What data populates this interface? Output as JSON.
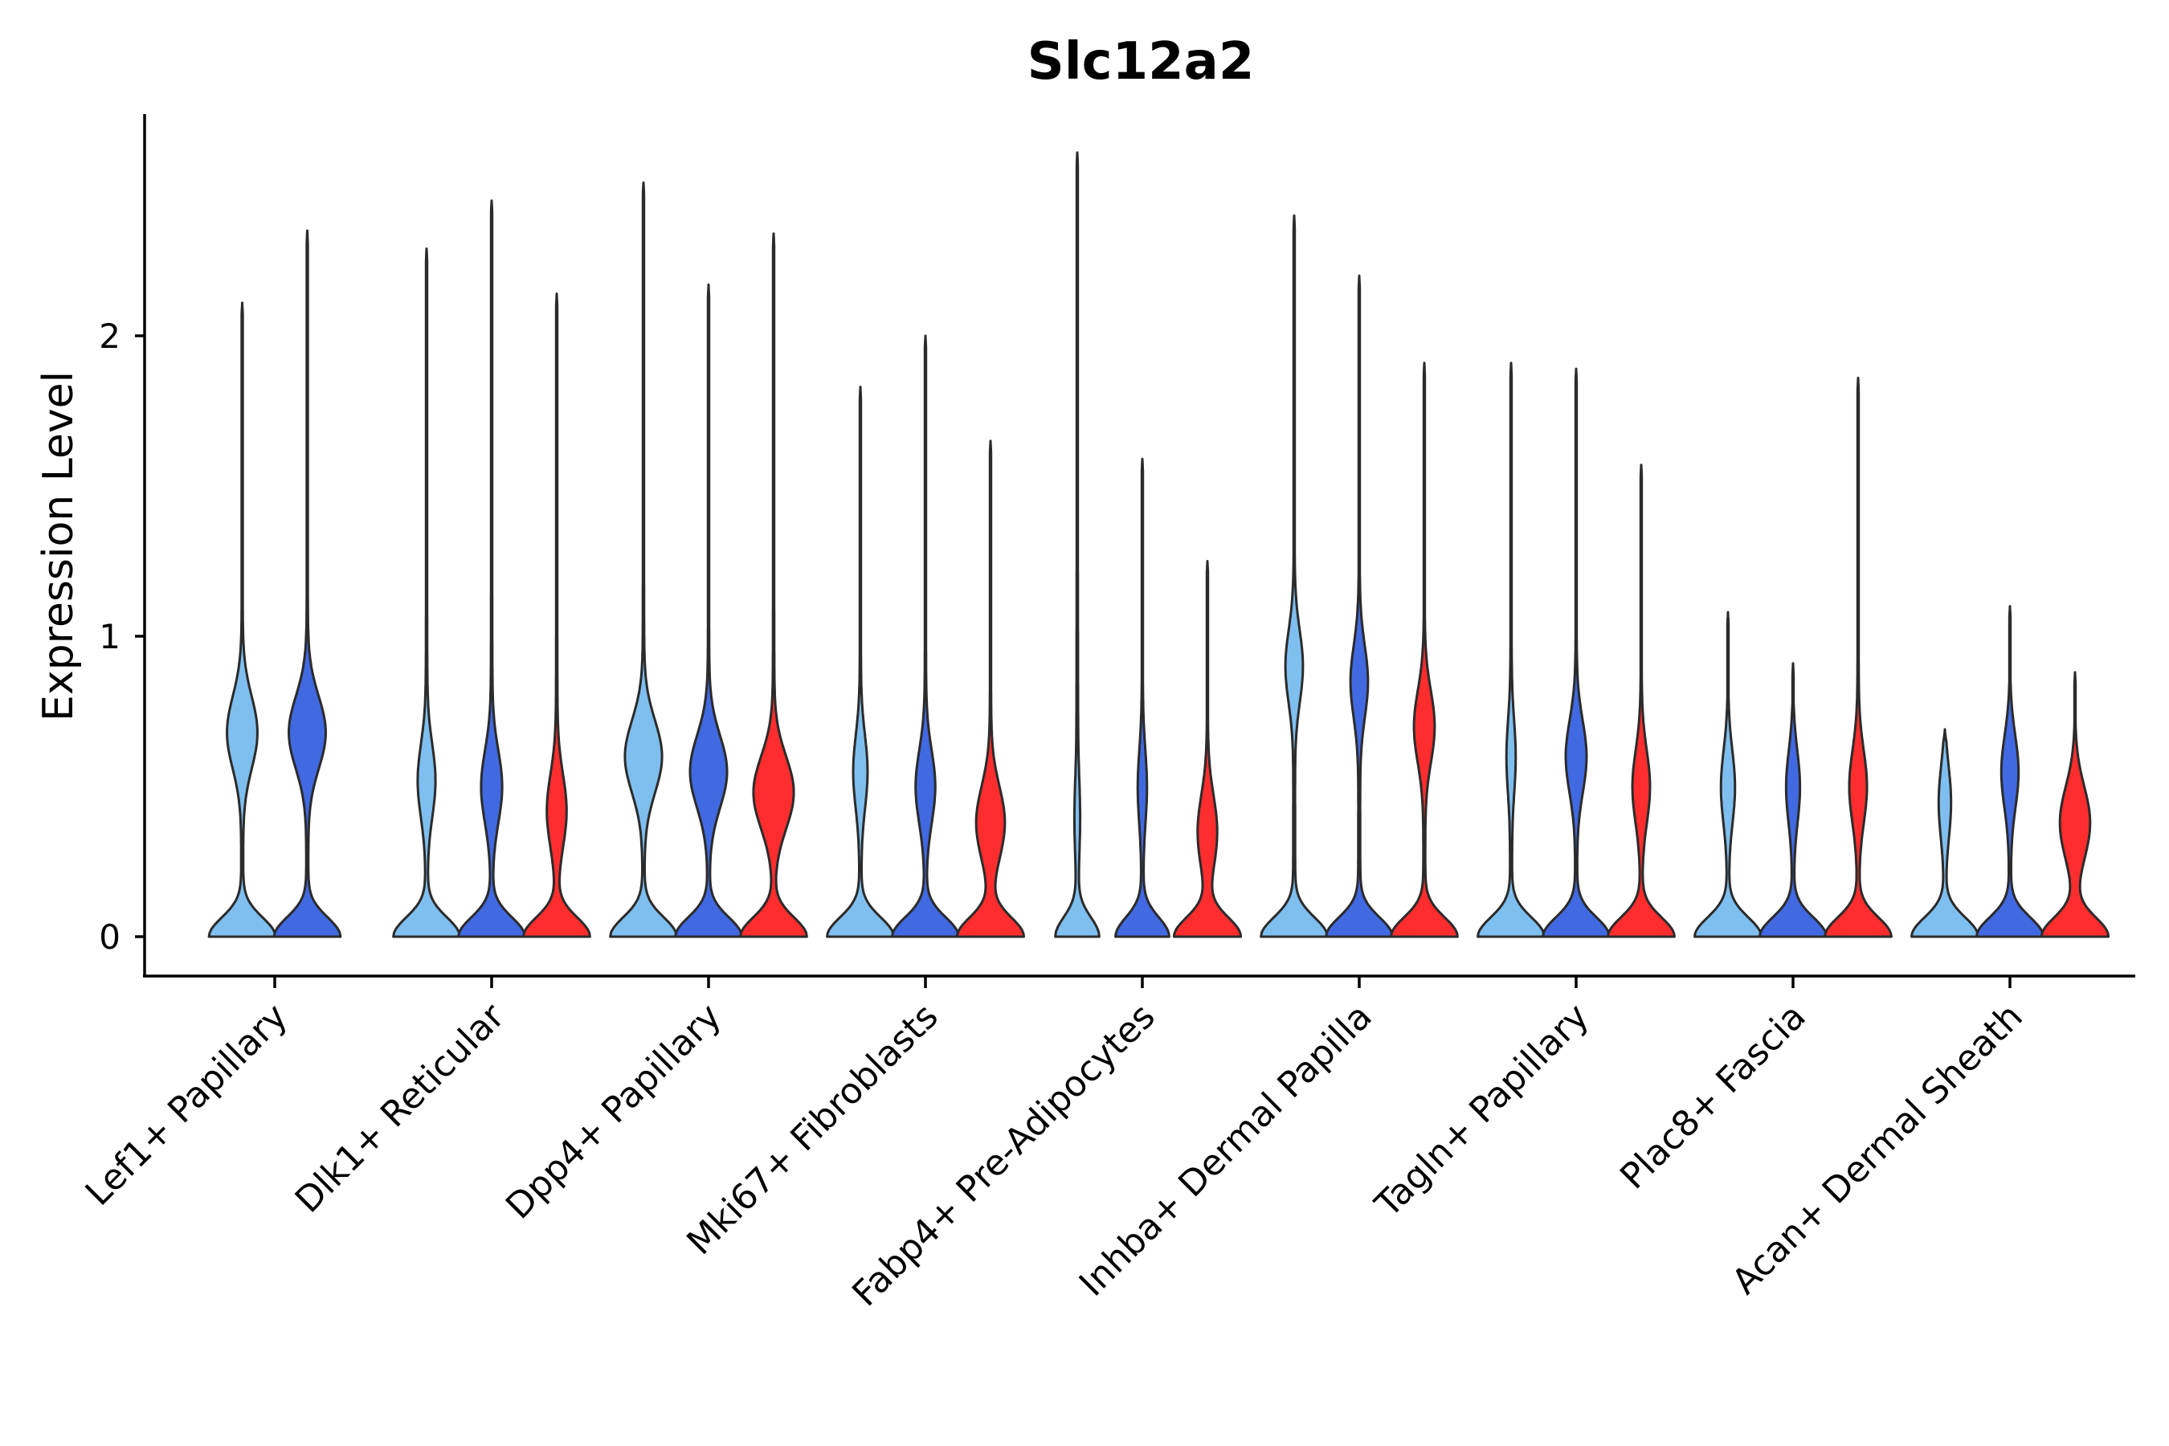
{
  "chart_data": {
    "type": "violin",
    "title": "Slc12a2",
    "xlabel": "",
    "ylabel": "Expression Level",
    "ylim": [
      -0.13,
      2.75
    ],
    "yticks": [
      0,
      1,
      2
    ],
    "grid": false,
    "legend": "none",
    "categories": [
      "Lef1+ Papillary",
      "Dlk1+ Reticular",
      "Dpp4+ Papillary",
      "Mki67+ Fibroblasts",
      "Fabp4+ Pre-Adipocytes",
      "Inhba+ Dermal Papilla",
      "Tagln+ Papillary",
      "Plac8+ Fascia",
      "Acan+ Dermal Sheath"
    ],
    "groups": [
      {
        "name": "group-1",
        "color": "#7fbfef"
      },
      {
        "name": "group-2",
        "color": "#4169e1"
      },
      {
        "name": "group-3",
        "color": "#ff2d2d"
      }
    ],
    "violins": [
      {
        "category": 0,
        "group": 0,
        "max": 2.11,
        "zero_width": 1.0,
        "bumps": [
          {
            "y": 0.68,
            "w": 0.45
          }
        ]
      },
      {
        "category": 0,
        "group": 1,
        "max": 2.35,
        "zero_width": 1.0,
        "bumps": [
          {
            "y": 0.68,
            "w": 0.55
          }
        ]
      },
      {
        "category": 1,
        "group": 0,
        "max": 2.29,
        "zero_width": 1.0,
        "bumps": [
          {
            "y": 0.52,
            "w": 0.25
          }
        ]
      },
      {
        "category": 1,
        "group": 1,
        "max": 2.45,
        "zero_width": 1.0,
        "bumps": [
          {
            "y": 0.5,
            "w": 0.3
          }
        ]
      },
      {
        "category": 1,
        "group": 2,
        "max": 2.14,
        "zero_width": 1.0,
        "bumps": [
          {
            "y": 0.42,
            "w": 0.28
          }
        ]
      },
      {
        "category": 2,
        "group": 0,
        "max": 2.51,
        "zero_width": 1.0,
        "bumps": [
          {
            "y": 0.6,
            "w": 0.55
          }
        ]
      },
      {
        "category": 2,
        "group": 1,
        "max": 2.17,
        "zero_width": 1.0,
        "bumps": [
          {
            "y": 0.55,
            "w": 0.55
          }
        ]
      },
      {
        "category": 2,
        "group": 2,
        "max": 2.34,
        "zero_width": 1.0,
        "bumps": [
          {
            "y": 0.48,
            "w": 0.6
          }
        ]
      },
      {
        "category": 3,
        "group": 0,
        "max": 1.83,
        "zero_width": 1.0,
        "bumps": [
          {
            "y": 0.55,
            "w": 0.2
          }
        ]
      },
      {
        "category": 3,
        "group": 1,
        "max": 2.0,
        "zero_width": 1.0,
        "bumps": [
          {
            "y": 0.5,
            "w": 0.28
          }
        ]
      },
      {
        "category": 3,
        "group": 2,
        "max": 1.65,
        "zero_width": 1.0,
        "bumps": [
          {
            "y": 0.38,
            "w": 0.42
          }
        ]
      },
      {
        "category": 4,
        "group": 0,
        "max": 2.61,
        "zero_width": 0.65,
        "bumps": [
          {
            "y": 0.4,
            "w": 0.06
          }
        ]
      },
      {
        "category": 4,
        "group": 1,
        "max": 1.59,
        "zero_width": 0.8,
        "bumps": [
          {
            "y": 0.5,
            "w": 0.12
          }
        ]
      },
      {
        "category": 4,
        "group": 2,
        "max": 1.25,
        "zero_width": 1.0,
        "bumps": [
          {
            "y": 0.35,
            "w": 0.28
          }
        ]
      },
      {
        "category": 5,
        "group": 0,
        "max": 2.4,
        "zero_width": 1.0,
        "bumps": [
          {
            "y": 0.9,
            "w": 0.25
          }
        ]
      },
      {
        "category": 5,
        "group": 1,
        "max": 2.2,
        "zero_width": 1.0,
        "bumps": [
          {
            "y": 0.85,
            "w": 0.25
          }
        ]
      },
      {
        "category": 5,
        "group": 2,
        "max": 1.91,
        "zero_width": 1.0,
        "bumps": [
          {
            "y": 0.7,
            "w": 0.3
          }
        ]
      },
      {
        "category": 6,
        "group": 0,
        "max": 1.91,
        "zero_width": 1.0,
        "bumps": [
          {
            "y": 0.6,
            "w": 0.12
          }
        ]
      },
      {
        "category": 6,
        "group": 1,
        "max": 1.89,
        "zero_width": 1.0,
        "bumps": [
          {
            "y": 0.6,
            "w": 0.3
          }
        ]
      },
      {
        "category": 6,
        "group": 2,
        "max": 1.57,
        "zero_width": 1.0,
        "bumps": [
          {
            "y": 0.5,
            "w": 0.25
          }
        ]
      },
      {
        "category": 7,
        "group": 0,
        "max": 1.08,
        "zero_width": 1.0,
        "bumps": [
          {
            "y": 0.5,
            "w": 0.2
          }
        ]
      },
      {
        "category": 7,
        "group": 1,
        "max": 0.91,
        "zero_width": 1.0,
        "bumps": [
          {
            "y": 0.5,
            "w": 0.2
          }
        ]
      },
      {
        "category": 7,
        "group": 2,
        "max": 1.86,
        "zero_width": 1.0,
        "bumps": [
          {
            "y": 0.5,
            "w": 0.25
          }
        ]
      },
      {
        "category": 8,
        "group": 0,
        "max": 0.69,
        "zero_width": 1.0,
        "bumps": [
          {
            "y": 0.45,
            "w": 0.18
          }
        ]
      },
      {
        "category": 8,
        "group": 1,
        "max": 1.1,
        "zero_width": 1.0,
        "bumps": [
          {
            "y": 0.55,
            "w": 0.25
          }
        ]
      },
      {
        "category": 8,
        "group": 2,
        "max": 0.88,
        "zero_width": 1.0,
        "bumps": [
          {
            "y": 0.38,
            "w": 0.45
          }
        ]
      }
    ]
  }
}
